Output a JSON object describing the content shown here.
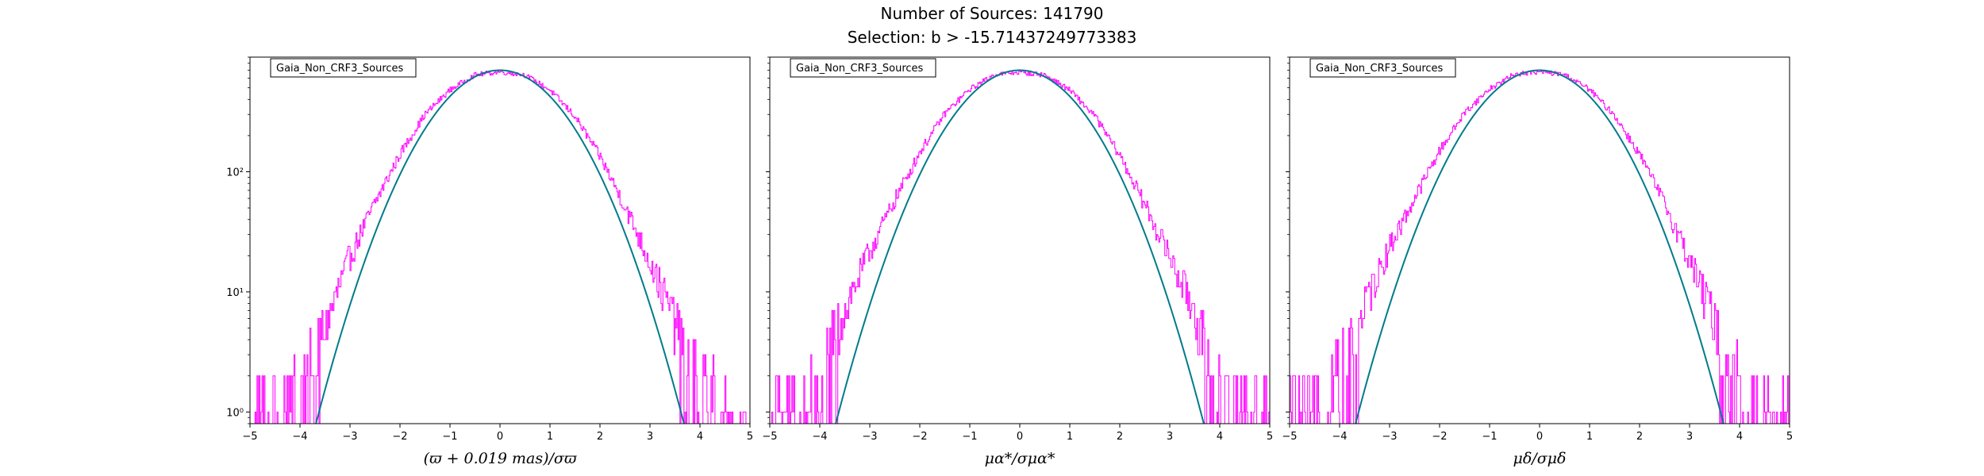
{
  "figure": {
    "title_line1": "Number of Sources: 141790",
    "title_line2": "Selection: b > -15.71437249773383"
  },
  "colors": {
    "histogram": "#ff00ff",
    "model": "#007b8a",
    "axes": "#000000"
  },
  "chart_data": [
    {
      "type": "line",
      "legend": "Gaia_Non_CRF3_Sources",
      "xlabel": "(ϖ + 0.019 mas)/σϖ",
      "ylabel": "",
      "xlim": [
        -5,
        5
      ],
      "ylim": [
        0.8,
        900
      ],
      "yscale": "log",
      "xticks": [
        "−5",
        "−4",
        "−3",
        "−2",
        "−1",
        "0",
        "1",
        "2",
        "3",
        "4",
        "5"
      ],
      "yticks": [
        {
          "value": 1,
          "label": "10⁰"
        },
        {
          "value": 10,
          "label": "10¹"
        },
        {
          "value": 100,
          "label": "10²"
        }
      ],
      "series": [
        {
          "kind": "histogram-outline",
          "x": [
            -5,
            -4.5,
            -4,
            -3.8,
            -3.5,
            -3,
            -2.5,
            -2,
            -1.5,
            -1,
            -0.5,
            0,
            0.5,
            1,
            1.5,
            2,
            2.5,
            3,
            3.5,
            3.8,
            4,
            4.5,
            5
          ],
          "y": [
            1,
            1,
            2,
            3,
            5,
            20,
            55,
            140,
            300,
            480,
            640,
            680,
            640,
            480,
            290,
            135,
            52,
            18,
            6,
            3,
            2,
            1,
            1
          ]
        },
        {
          "kind": "gaussian-model",
          "peak": 700,
          "mean": 0,
          "sigma": 1,
          "x_range": [
            -3.8,
            3.8
          ]
        }
      ]
    },
    {
      "type": "line",
      "legend": "Gaia_Non_CRF3_Sources",
      "xlabel": "μα*/σμα*",
      "ylabel": "",
      "xlim": [
        -5,
        5
      ],
      "ylim": [
        0.8,
        900
      ],
      "yscale": "log",
      "xticks": [
        "−5",
        "−4",
        "−3",
        "−2",
        "−1",
        "0",
        "1",
        "2",
        "3",
        "4",
        "5"
      ],
      "yticks": [
        {
          "value": 1,
          "label": ""
        },
        {
          "value": 10,
          "label": ""
        },
        {
          "value": 100,
          "label": ""
        }
      ],
      "series": [
        {
          "kind": "histogram-outline",
          "x": [
            -5,
            -4.5,
            -4,
            -3.8,
            -3.5,
            -3,
            -2.5,
            -2,
            -1.5,
            -1,
            -0.5,
            0,
            0.5,
            1,
            1.5,
            2,
            2.5,
            3,
            3.5,
            3.8,
            4,
            4.5,
            5
          ],
          "y": [
            1,
            1,
            2,
            4,
            7,
            22,
            58,
            145,
            305,
            485,
            645,
            675,
            640,
            480,
            292,
            138,
            54,
            20,
            7,
            3,
            2,
            1,
            1
          ]
        },
        {
          "kind": "gaussian-model",
          "peak": 700,
          "mean": 0,
          "sigma": 1,
          "x_range": [
            -3.85,
            3.85
          ]
        }
      ]
    },
    {
      "type": "line",
      "legend": "Gaia_Non_CRF3_Sources",
      "xlabel": "μδ/σμδ",
      "ylabel": "",
      "xlim": [
        -5,
        5
      ],
      "ylim": [
        0.8,
        900
      ],
      "yscale": "log",
      "xticks": [
        "−5",
        "−4",
        "−3",
        "−2",
        "−1",
        "0",
        "1",
        "2",
        "3",
        "4",
        "5"
      ],
      "yticks": [
        {
          "value": 1,
          "label": ""
        },
        {
          "value": 10,
          "label": ""
        },
        {
          "value": 100,
          "label": ""
        }
      ],
      "series": [
        {
          "kind": "histogram-outline",
          "x": [
            -5,
            -4.5,
            -4,
            -3.8,
            -3.5,
            -3,
            -2.5,
            -2,
            -1.5,
            -1,
            -0.5,
            0,
            0.5,
            1,
            1.5,
            2,
            2.5,
            3,
            3.5,
            3.8,
            4,
            4.5,
            5
          ],
          "y": [
            1,
            1,
            3,
            4,
            8,
            24,
            60,
            150,
            310,
            490,
            650,
            680,
            645,
            485,
            295,
            140,
            55,
            19,
            6,
            3,
            2,
            1,
            1
          ]
        },
        {
          "kind": "gaussian-model",
          "peak": 700,
          "mean": 0,
          "sigma": 1,
          "x_range": [
            -3.9,
            3.9
          ]
        }
      ]
    }
  ]
}
